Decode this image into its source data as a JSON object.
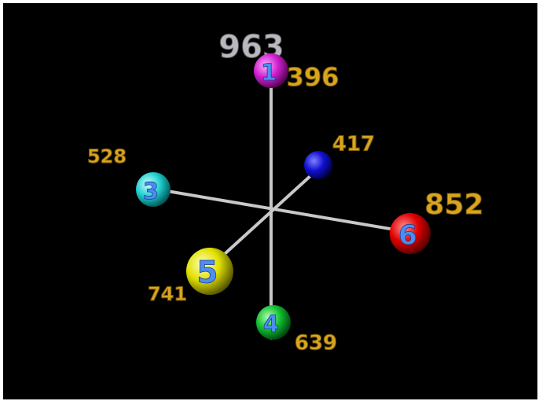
{
  "top_label": "963",
  "nodes": [
    {
      "number": "1",
      "label": "396"
    },
    {
      "label": "417"
    },
    {
      "number": "3",
      "label": "528"
    },
    {
      "number": "6",
      "label": "852"
    },
    {
      "number": "5",
      "label": "741"
    },
    {
      "number": "4",
      "label": "639"
    }
  ]
}
